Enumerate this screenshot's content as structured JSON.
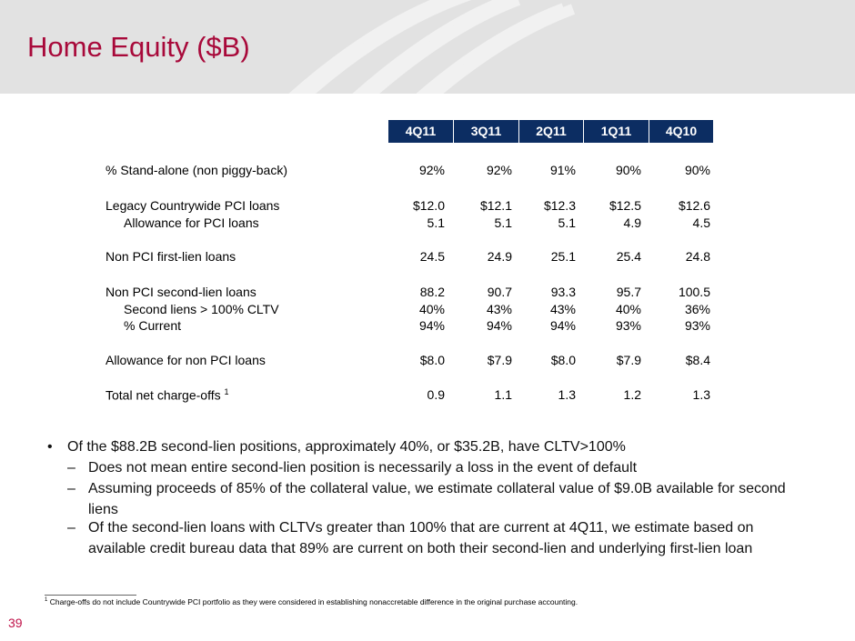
{
  "title": "Home Equity ($B)",
  "columns": [
    "4Q11",
    "3Q11",
    "2Q11",
    "1Q11",
    "4Q10"
  ],
  "rows": [
    {
      "label": "% Stand-alone (non piggy-back)",
      "values": [
        "92%",
        "92%",
        "91%",
        "90%",
        "90%"
      ]
    },
    {
      "label": "Legacy Countrywide PCI loans",
      "values": [
        "$12.0",
        "$12.1",
        "$12.3",
        "$12.5",
        "$12.6"
      ]
    },
    {
      "label": "Allowance for PCI loans",
      "values": [
        "5.1",
        "5.1",
        "5.1",
        "4.9",
        "4.5"
      ]
    },
    {
      "label": "Non PCI first-lien loans",
      "values": [
        "24.5",
        "24.9",
        "25.1",
        "25.4",
        "24.8"
      ]
    },
    {
      "label": "Non PCI second-lien loans",
      "values": [
        "88.2",
        "90.7",
        "93.3",
        "95.7",
        "100.5"
      ]
    },
    {
      "label": "Second liens > 100% CLTV",
      "values": [
        "40%",
        "43%",
        "43%",
        "40%",
        "36%"
      ]
    },
    {
      "label": "% Current",
      "values": [
        "94%",
        "94%",
        "94%",
        "93%",
        "93%"
      ]
    },
    {
      "label": "Allowance for non PCI loans",
      "values": [
        "$8.0",
        "$7.9",
        "$8.0",
        "$7.9",
        "$8.4"
      ]
    },
    {
      "label": "Total net charge-offs",
      "sup": "1",
      "values": [
        "0.9",
        "1.1",
        "1.3",
        "1.2",
        "1.3"
      ]
    }
  ],
  "bullets": {
    "main": "Of the $88.2B second-lien positions, approximately 40%, or $35.2B, have CLTV>100%",
    "subs": [
      "Does not mean entire second-lien position is necessarily a loss in the event of default",
      "Assuming proceeds of 85% of the collateral value, we estimate collateral value of $9.0B available for second liens",
      "Of the second-lien loans with CLTVs greater than 100% that are current at 4Q11, we estimate based on available credit bureau data that 89% are current on both their second-lien and underlying first-lien loan"
    ]
  },
  "footnote": {
    "mark": "1",
    "text": "Charge-offs do not include Countrywide PCI portfolio as they were considered in establishing nonaccretable difference in the original purchase accounting."
  },
  "page_number": "39"
}
